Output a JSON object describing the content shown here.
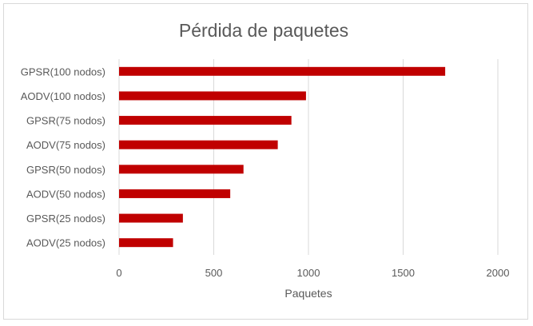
{
  "chart_data": {
    "type": "bar",
    "orientation": "horizontal",
    "title": "Pérdida de paquetes",
    "xlabel": "Paquetes",
    "ylabel": "",
    "categories": [
      "AODV(25 nodos)",
      "GPSR(25 nodos)",
      "AODV(50 nodos)",
      "GPSR(50 nodos)",
      "AODV(75 nodos)",
      "GPSR(75 nodos)",
      "AODV(100 nodos)",
      "GPSR(100 nodos)"
    ],
    "values": [
      285,
      337,
      587,
      657,
      838,
      910,
      987,
      1722
    ],
    "xlim": [
      0,
      2000
    ],
    "xticks": [
      0,
      500,
      1000,
      1500,
      2000
    ],
    "xtick_labels": [
      "0",
      "500",
      "1000",
      "1500",
      "2000"
    ],
    "grid": "vertical",
    "legend": "none",
    "bar_color": "#c00000",
    "grid_color": "#d9d9d9"
  }
}
